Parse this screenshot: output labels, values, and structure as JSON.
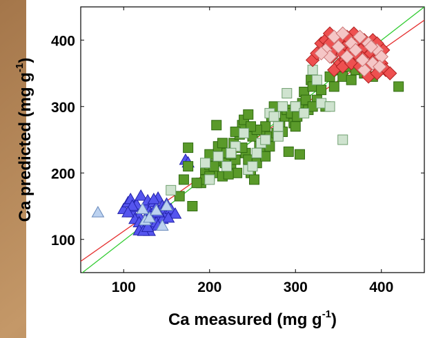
{
  "chart_data": {
    "type": "scatter",
    "xlabel": "Ca measured (mg g",
    "xlabel_sup": "-1",
    "xlabel_close": ")",
    "ylabel": "Ca predicted (mg g",
    "ylabel_sup": "-1",
    "ylabel_close": ")",
    "xlim": [
      50,
      450
    ],
    "ylim": [
      50,
      450
    ],
    "xticks": [
      100,
      200,
      300,
      400
    ],
    "yticks": [
      100,
      200,
      300,
      400
    ],
    "grid": false,
    "colors": {
      "blue_fill": "#5555ee",
      "blue_stroke": "#2222aa",
      "ltblue_fill": "#bcd2f0",
      "ltblue_stroke": "#6688bb",
      "green_fill": "#5a9a2a",
      "green_stroke": "#2f6a10",
      "ltgreen_fill": "#cfe3cf",
      "ltgreen_stroke": "#6f9f6f",
      "red_fill": "#ee5050",
      "red_stroke": "#b02020",
      "pink_fill": "#f5c6c6",
      "pink_stroke": "#cc7777",
      "line_red": "#e53030",
      "line_green": "#33cc33",
      "background_texture": "#b88a5a"
    },
    "series": [
      {
        "marker": "triangle",
        "fill": "#5555ee",
        "stroke": "#2222aa",
        "points": [
          [
            100,
            145
          ],
          [
            105,
            155
          ],
          [
            108,
            160
          ],
          [
            110,
            140
          ],
          [
            112,
            148
          ],
          [
            115,
            152
          ],
          [
            118,
            135
          ],
          [
            120,
            165
          ],
          [
            122,
            145
          ],
          [
            125,
            150
          ],
          [
            128,
            158
          ],
          [
            130,
            142
          ],
          [
            132,
            138
          ],
          [
            135,
            155
          ],
          [
            138,
            148
          ],
          [
            140,
            162
          ],
          [
            142,
            135
          ],
          [
            145,
            150
          ],
          [
            148,
            144
          ],
          [
            150,
            138
          ],
          [
            113,
            130
          ],
          [
            118,
            125
          ],
          [
            125,
            128
          ],
          [
            132,
            120
          ],
          [
            138,
            125
          ],
          [
            145,
            130
          ],
          [
            120,
            118
          ],
          [
            130,
            112
          ],
          [
            140,
            120
          ],
          [
            118,
            113
          ],
          [
            123,
            112
          ],
          [
            128,
            118
          ],
          [
            110,
            150
          ],
          [
            135,
            160
          ],
          [
            150,
            153
          ],
          [
            155,
            145
          ],
          [
            160,
            138
          ],
          [
            172,
            219
          ],
          [
            175,
            215
          ],
          [
            140,
            140
          ],
          [
            152,
            132
          ],
          [
            105,
            140
          ]
        ]
      },
      {
        "marker": "triangle",
        "fill": "#bcd2f0",
        "stroke": "#6688bb",
        "points": [
          [
            70,
            140
          ],
          [
            125,
            128
          ],
          [
            130,
            132
          ],
          [
            145,
            120
          ],
          [
            150,
            150
          ],
          [
            138,
            143
          ],
          [
            122,
            145
          ]
        ]
      },
      {
        "marker": "square",
        "fill": "#5a9a2a",
        "stroke": "#2f6a10",
        "points": [
          [
            165,
            165
          ],
          [
            175,
            238
          ],
          [
            180,
            150
          ],
          [
            190,
            185
          ],
          [
            195,
            190
          ],
          [
            200,
            228
          ],
          [
            205,
            200
          ],
          [
            208,
            272
          ],
          [
            210,
            240
          ],
          [
            212,
            218
          ],
          [
            215,
            195
          ],
          [
            220,
            230
          ],
          [
            225,
            210
          ],
          [
            228,
            245
          ],
          [
            230,
            220
          ],
          [
            232,
            200
          ],
          [
            235,
            258
          ],
          [
            238,
            272
          ],
          [
            240,
            280
          ],
          [
            242,
            230
          ],
          [
            245,
            220
          ],
          [
            248,
            200
          ],
          [
            250,
            255
          ],
          [
            252,
            190
          ],
          [
            255,
            215
          ],
          [
            258,
            240
          ],
          [
            260,
            265
          ],
          [
            262,
            230
          ],
          [
            265,
            270
          ],
          [
            268,
            245
          ],
          [
            270,
            255
          ],
          [
            272,
            285
          ],
          [
            275,
            300
          ],
          [
            278,
            260
          ],
          [
            280,
            270
          ],
          [
            282,
            275
          ],
          [
            285,
            262
          ],
          [
            288,
            285
          ],
          [
            290,
            295
          ],
          [
            292,
            232
          ],
          [
            295,
            290
          ],
          [
            298,
            275
          ],
          [
            300,
            300
          ],
          [
            302,
            285
          ],
          [
            305,
            228
          ],
          [
            308,
            305
          ],
          [
            310,
            322
          ],
          [
            312,
            310
          ],
          [
            315,
            295
          ],
          [
            318,
            340
          ],
          [
            320,
            330
          ],
          [
            325,
            310
          ],
          [
            330,
            325
          ],
          [
            335,
            300
          ],
          [
            340,
            345
          ],
          [
            345,
            330
          ],
          [
            350,
            355
          ],
          [
            355,
            345
          ],
          [
            360,
            360
          ],
          [
            365,
            340
          ],
          [
            370,
            355
          ],
          [
            380,
            350
          ],
          [
            390,
            345
          ],
          [
            420,
            330
          ],
          [
            245,
            288
          ],
          [
            255,
            265
          ],
          [
            265,
            225
          ],
          [
            270,
            240
          ],
          [
            218,
            215
          ],
          [
            225,
            228
          ],
          [
            185,
            185
          ],
          [
            195,
            205
          ],
          [
            200,
            212
          ],
          [
            215,
            245
          ],
          [
            222,
            198
          ],
          [
            230,
            262
          ],
          [
            238,
            238
          ],
          [
            248,
            270
          ],
          [
            200,
            195
          ],
          [
            205,
            210
          ],
          [
            170,
            190
          ],
          [
            175,
            210
          ],
          [
            300,
            270
          ],
          [
            320,
            300
          ]
        ]
      },
      {
        "marker": "square",
        "fill": "#cfe3cf",
        "stroke": "#6f9f6f",
        "points": [
          [
            155,
            174
          ],
          [
            195,
            215
          ],
          [
            200,
            190
          ],
          [
            210,
            225
          ],
          [
            220,
            210
          ],
          [
            230,
            240
          ],
          [
            240,
            260
          ],
          [
            245,
            205
          ],
          [
            250,
            210
          ],
          [
            255,
            230
          ],
          [
            260,
            245
          ],
          [
            265,
            250
          ],
          [
            270,
            290
          ],
          [
            275,
            285
          ],
          [
            280,
            270
          ],
          [
            285,
            300
          ],
          [
            290,
            320
          ],
          [
            300,
            300
          ],
          [
            310,
            290
          ],
          [
            320,
            355
          ],
          [
            325,
            340
          ],
          [
            330,
            305
          ],
          [
            340,
            300
          ],
          [
            350,
            365
          ],
          [
            355,
            250
          ],
          [
            360,
            380
          ],
          [
            280,
            255
          ],
          [
            225,
            230
          ]
        ]
      },
      {
        "marker": "diamond",
        "fill": "#ee5050",
        "stroke": "#b02020",
        "points": [
          [
            320,
            370
          ],
          [
            325,
            380
          ],
          [
            330,
            395
          ],
          [
            335,
            400
          ],
          [
            338,
            390
          ],
          [
            340,
            410
          ],
          [
            342,
            375
          ],
          [
            345,
            385
          ],
          [
            348,
            395
          ],
          [
            350,
            400
          ],
          [
            352,
            365
          ],
          [
            355,
            380
          ],
          [
            358,
            370
          ],
          [
            360,
            390
          ],
          [
            362,
            395
          ],
          [
            365,
            385
          ],
          [
            368,
            375
          ],
          [
            370,
            400
          ],
          [
            372,
            395
          ],
          [
            375,
            385
          ],
          [
            378,
            375
          ],
          [
            380,
            390
          ],
          [
            382,
            365
          ],
          [
            385,
            360
          ],
          [
            388,
            380
          ],
          [
            390,
            400
          ],
          [
            392,
            370
          ],
          [
            395,
            385
          ],
          [
            398,
            375
          ],
          [
            400,
            365
          ],
          [
            402,
            385
          ],
          [
            405,
            355
          ],
          [
            410,
            350
          ],
          [
            345,
            355
          ],
          [
            355,
            360
          ],
          [
            365,
            365
          ],
          [
            375,
            360
          ],
          [
            385,
            345
          ],
          [
            395,
            350
          ],
          [
            380,
            400
          ],
          [
            368,
            410
          ],
          [
            360,
            405
          ],
          [
            395,
            395
          ],
          [
            370,
            380
          ],
          [
            340,
            395
          ]
        ]
      },
      {
        "marker": "diamond",
        "fill": "#f5c6c6",
        "stroke": "#cc7777",
        "points": [
          [
            335,
            385
          ],
          [
            345,
            405
          ],
          [
            355,
            410
          ],
          [
            365,
            395
          ],
          [
            375,
            405
          ],
          [
            385,
            395
          ],
          [
            395,
            385
          ],
          [
            400,
            375
          ],
          [
            390,
            365
          ],
          [
            380,
            355
          ],
          [
            370,
            385
          ],
          [
            360,
            375
          ],
          [
            350,
            390
          ],
          [
            340,
            375
          ],
          [
            330,
            380
          ],
          [
            398,
            360
          ],
          [
            388,
            390
          ],
          [
            378,
            370
          ]
        ]
      }
    ],
    "lines": [
      {
        "color": "#e53030",
        "x": [
          50,
          450
        ],
        "y": [
          67,
          430
        ]
      },
      {
        "color": "#33cc33",
        "x": [
          50,
          450
        ],
        "y": [
          48,
          450
        ]
      }
    ]
  }
}
